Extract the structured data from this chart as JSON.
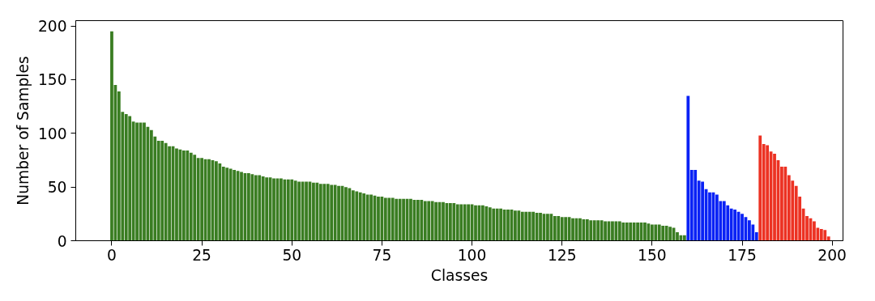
{
  "chart_data": {
    "type": "bar",
    "xlabel": "Classes",
    "ylabel": "Number of Samples",
    "xlim": [
      -10,
      203
    ],
    "ylim": [
      0,
      205
    ],
    "xticks": [
      0,
      25,
      50,
      75,
      100,
      125,
      150,
      175,
      200
    ],
    "yticks": [
      0,
      50,
      100,
      150,
      200
    ],
    "grid": false,
    "series": [
      {
        "color": "#3a7d22",
        "x": [
          0,
          1,
          2,
          3,
          4,
          5,
          6,
          7,
          8,
          9,
          10,
          11,
          12,
          13,
          14,
          15,
          16,
          17,
          18,
          19,
          20,
          21,
          22,
          23,
          24,
          25,
          26,
          27,
          28,
          29,
          30,
          31,
          32,
          33,
          34,
          35,
          36,
          37,
          38,
          39,
          40,
          41,
          42,
          43,
          44,
          45,
          46,
          47,
          48,
          49,
          50,
          51,
          52,
          53,
          54,
          55,
          56,
          57,
          58,
          59,
          60,
          61,
          62,
          63,
          64,
          65,
          66,
          67,
          68,
          69,
          70,
          71,
          72,
          73,
          74,
          75,
          76,
          77,
          78,
          79,
          80,
          81,
          82,
          83,
          84,
          85,
          86,
          87,
          88,
          89,
          90,
          91,
          92,
          93,
          94,
          95,
          96,
          97,
          98,
          99,
          100,
          101,
          102,
          103,
          104,
          105,
          106,
          107,
          108,
          109,
          110,
          111,
          112,
          113,
          114,
          115,
          116,
          117,
          118,
          119,
          120,
          121,
          122,
          123,
          124,
          125,
          126,
          127,
          128,
          129,
          130,
          131,
          132,
          133,
          134,
          135,
          136,
          137,
          138,
          139,
          140,
          141,
          142,
          143,
          144,
          145,
          146,
          147,
          148,
          149,
          150,
          151,
          152,
          153,
          154,
          155,
          156,
          157,
          158,
          159
        ],
        "values": [
          195,
          145,
          139,
          120,
          118,
          116,
          111,
          110,
          110,
          110,
          106,
          103,
          97,
          93,
          93,
          91,
          88,
          88,
          86,
          85,
          84,
          84,
          82,
          80,
          77,
          77,
          76,
          76,
          75,
          74,
          72,
          69,
          68,
          67,
          66,
          65,
          64,
          63,
          63,
          62,
          61,
          61,
          60,
          59,
          59,
          58,
          58,
          58,
          57,
          57,
          57,
          56,
          55,
          55,
          55,
          55,
          54,
          54,
          53,
          53,
          53,
          52,
          52,
          51,
          51,
          50,
          49,
          47,
          46,
          45,
          44,
          43,
          43,
          42,
          41,
          41,
          40,
          40,
          40,
          39,
          39,
          39,
          39,
          39,
          38,
          38,
          38,
          37,
          37,
          37,
          36,
          36,
          36,
          35,
          35,
          35,
          34,
          34,
          34,
          34,
          34,
          33,
          33,
          33,
          32,
          31,
          30,
          30,
          30,
          29,
          29,
          29,
          28,
          28,
          27,
          27,
          27,
          27,
          26,
          26,
          25,
          25,
          25,
          23,
          23,
          22,
          22,
          22,
          21,
          21,
          21,
          20,
          20,
          19,
          19,
          19,
          19,
          18,
          18,
          18,
          18,
          18,
          17,
          17,
          17,
          17,
          17,
          17,
          17,
          16,
          15,
          15,
          15,
          14,
          14,
          13,
          12,
          8,
          5,
          5
        ]
      },
      {
        "color": "#0a22f5",
        "x": [
          160,
          161,
          162,
          163,
          164,
          165,
          166,
          167,
          168,
          169,
          170,
          171,
          172,
          173,
          174,
          175,
          176,
          177,
          178,
          179
        ],
        "values": [
          135,
          66,
          66,
          56,
          55,
          48,
          45,
          45,
          43,
          37,
          37,
          33,
          30,
          29,
          27,
          25,
          22,
          19,
          15,
          8
        ]
      },
      {
        "color": "#ec3223",
        "x": [
          180,
          181,
          182,
          183,
          184,
          185,
          186,
          187,
          188,
          189,
          190,
          191,
          192,
          193,
          194,
          195,
          196,
          197,
          198,
          199
        ],
        "values": [
          98,
          90,
          89,
          83,
          81,
          75,
          69,
          69,
          61,
          56,
          51,
          41,
          30,
          23,
          21,
          18,
          12,
          11,
          10,
          4
        ]
      }
    ]
  }
}
